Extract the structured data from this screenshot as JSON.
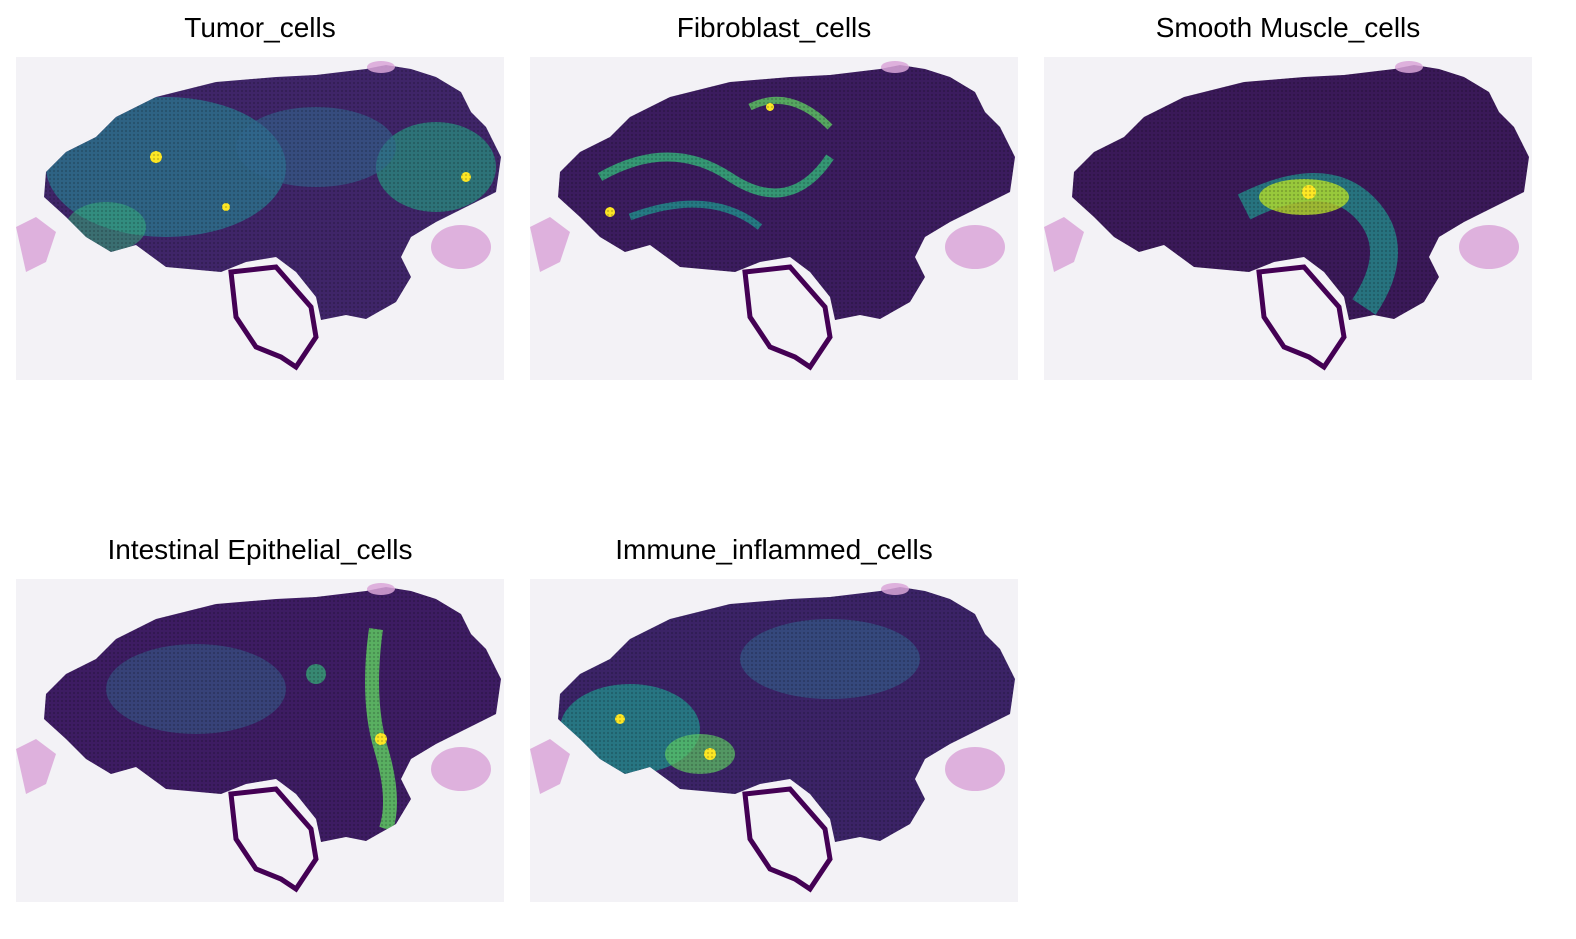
{
  "panels": [
    {
      "title": "Tumor_cells",
      "palette": {
        "low": "#440154",
        "mid": "#21918c",
        "high": "#fde725"
      }
    },
    {
      "title": "Fibroblast_cells",
      "palette": {
        "low": "#440154",
        "mid": "#21918c",
        "high": "#fde725"
      }
    },
    {
      "title": "Smooth Muscle_cells",
      "palette": {
        "low": "#440154",
        "mid": "#21918c",
        "high": "#fde725"
      }
    },
    {
      "title": "Intestinal Epithelial_cells",
      "palette": {
        "low": "#440154",
        "mid": "#21918c",
        "high": "#fde725"
      }
    },
    {
      "title": "Immune_inflammed_cells",
      "palette": {
        "low": "#440154",
        "mid": "#21918c",
        "high": "#fde725"
      }
    }
  ],
  "colors": {
    "background": "#f3f2f6",
    "tissue_fragment": "#d9a6d8"
  }
}
